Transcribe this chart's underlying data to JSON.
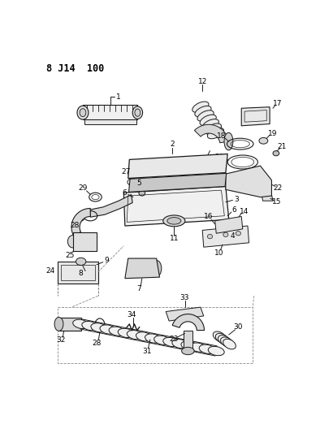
{
  "title": "8 J14  100",
  "bg_color": "#ffffff",
  "lc": "#1a1a1a",
  "fig_width": 3.94,
  "fig_height": 5.33,
  "dpi": 100
}
